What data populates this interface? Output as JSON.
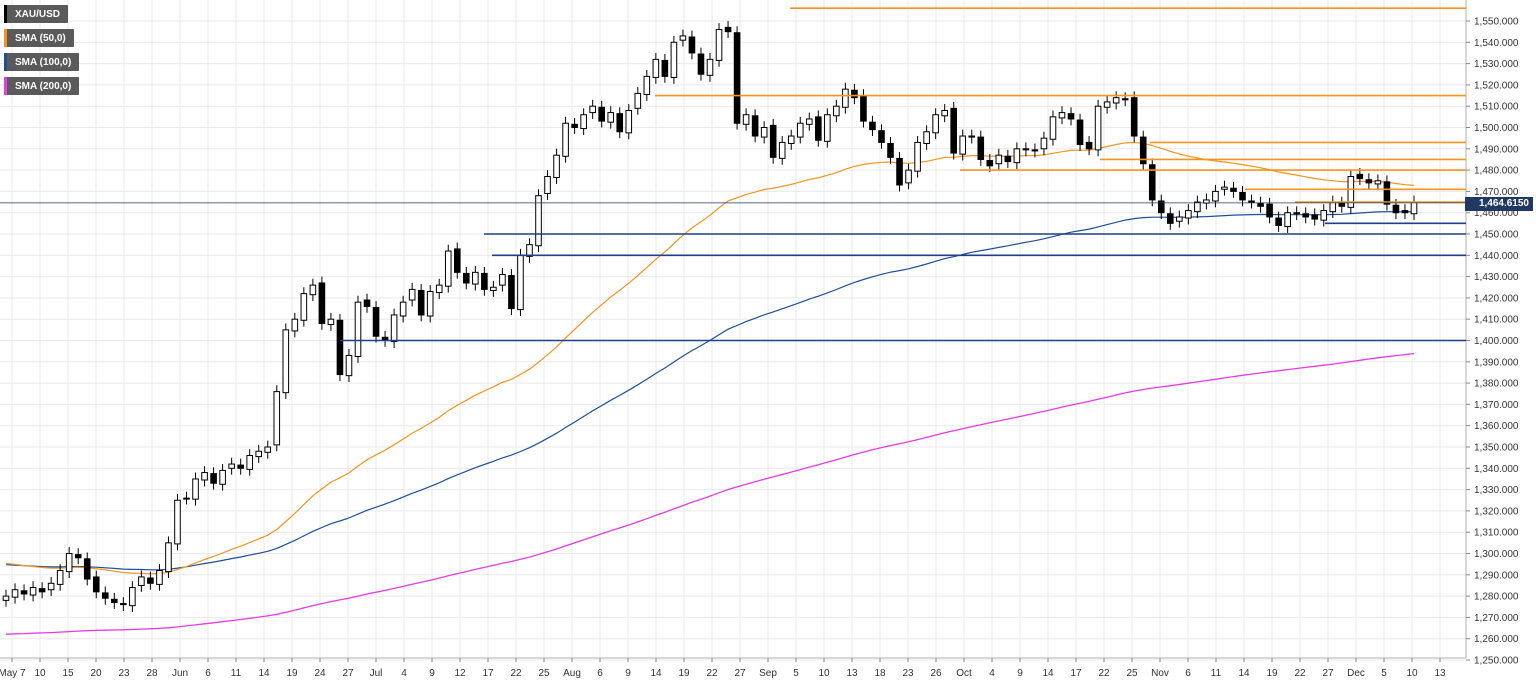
{
  "legend": [
    {
      "label": "XAU/USD",
      "color": "#000000"
    },
    {
      "label": "SMA (50,0)",
      "color": "#f7931e"
    },
    {
      "label": "SMA (100,0)",
      "color": "#1f4e9c"
    },
    {
      "label": "SMA (200,0)",
      "color": "#e83ae8"
    }
  ],
  "current_price": "1,464.6150",
  "chart_data": {
    "type": "candlestick",
    "symbol": "XAU/USD",
    "ylim": [
      1250,
      1556
    ],
    "y_ticks": [
      "1,250.000",
      "1,260.000",
      "1,270.000",
      "1,280.000",
      "1,290.000",
      "1,300.000",
      "1,310.000",
      "1,320.000",
      "1,330.000",
      "1,340.000",
      "1,350.000",
      "1,360.000",
      "1,370.000",
      "1,380.000",
      "1,390.000",
      "1,400.000",
      "1,410.000",
      "1,420.000",
      "1,430.000",
      "1,440.000",
      "1,450.000",
      "1,460.000",
      "1,470.000",
      "1,480.000",
      "1,490.000",
      "1,500.000",
      "1,510.000",
      "1,520.000",
      "1,530.000",
      "1,540.000",
      "1,550.000"
    ],
    "x_ticks": [
      "May 7",
      "10",
      "15",
      "20",
      "23",
      "28",
      "Jun",
      "6",
      "11",
      "14",
      "19",
      "24",
      "27",
      "Jul",
      "4",
      "9",
      "12",
      "17",
      "22",
      "25",
      "Aug",
      "6",
      "9",
      "14",
      "19",
      "22",
      "27",
      "Sep",
      "5",
      "10",
      "13",
      "18",
      "23",
      "26",
      "Oct",
      "4",
      "9",
      "14",
      "17",
      "22",
      "25",
      "Nov",
      "6",
      "11",
      "14",
      "19",
      "22",
      "27",
      "Dec",
      "5",
      "10",
      "13"
    ],
    "closes": [
      1280,
      1283,
      1281,
      1284,
      1282,
      1286,
      1292,
      1300,
      1298,
      1288,
      1282,
      1279,
      1277,
      1276,
      1284,
      1289,
      1286,
      1292,
      1305,
      1325,
      1326,
      1335,
      1338,
      1333,
      1339,
      1342,
      1340,
      1346,
      1348,
      1350,
      1376,
      1405,
      1410,
      1422,
      1426,
      1408,
      1410,
      1384,
      1393,
      1418,
      1416,
      1402,
      1400,
      1412,
      1418,
      1424,
      1412,
      1423,
      1426,
      1442,
      1432,
      1427,
      1432,
      1424,
      1425,
      1431,
      1415,
      1440,
      1445,
      1468,
      1477,
      1487,
      1502,
      1500,
      1506,
      1510,
      1503,
      1507,
      1498,
      1508,
      1516,
      1524,
      1532,
      1524,
      1540,
      1543,
      1535,
      1525,
      1532,
      1546,
      1545,
      1502,
      1506,
      1496,
      1500,
      1486,
      1493,
      1496,
      1502,
      1504,
      1494,
      1506,
      1510,
      1518,
      1514,
      1503,
      1499,
      1493,
      1486,
      1473,
      1480,
      1493,
      1498,
      1506,
      1508,
      1488,
      1496,
      1496,
      1485,
      1482,
      1487,
      1484,
      1490,
      1490,
      1489,
      1495,
      1505,
      1507,
      1504,
      1492,
      1490,
      1510,
      1512,
      1514,
      1513,
      1496,
      1483,
      1466,
      1460,
      1455,
      1458,
      1461,
      1465,
      1466,
      1470,
      1472,
      1470,
      1466,
      1465,
      1463,
      1458,
      1454,
      1460,
      1460,
      1458,
      1457,
      1461,
      1465,
      1463,
      1477,
      1476,
      1474,
      1475,
      1464,
      1460,
      1460,
      1465
    ],
    "sma50_start": 1296,
    "sma100_start": 1295,
    "sma200_start": 1262,
    "orange_levels": [
      1556,
      1515,
      1493,
      1485,
      1480,
      1471,
      1465
    ],
    "blue_levels": [
      1455,
      1450,
      1440,
      1400
    ]
  }
}
